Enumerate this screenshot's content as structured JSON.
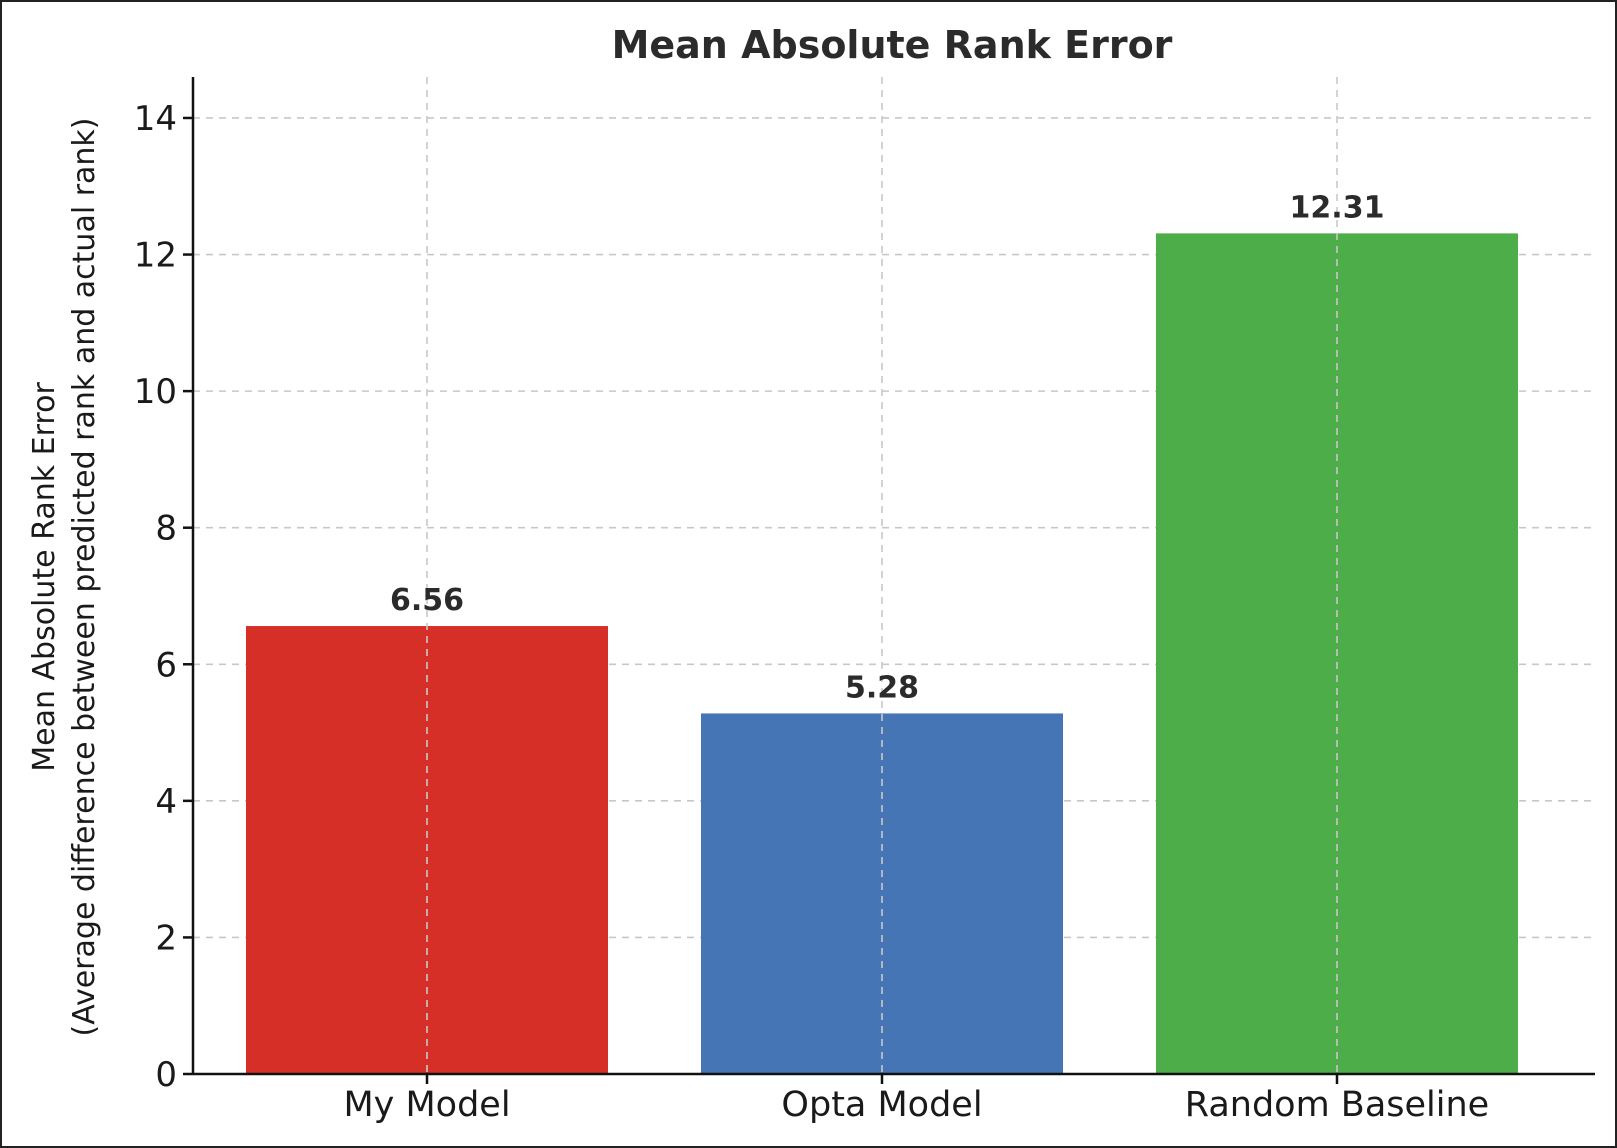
{
  "chart_data": {
    "type": "bar",
    "title": "Mean Absolute Rank Error",
    "ylabel_line1": "Mean Absolute Rank Error",
    "ylabel_line2": "(Average difference between predicted rank and actual rank)",
    "xlabel": "",
    "categories": [
      "My Model",
      "Opta Model",
      "Random Baseline"
    ],
    "values": [
      6.56,
      5.28,
      12.31
    ],
    "value_labels": [
      "6.56",
      "5.28",
      "12.31"
    ],
    "colors": [
      "#d62f27",
      "#4675b6",
      "#4dad48"
    ],
    "ylim": [
      0,
      14.6
    ],
    "yticks": [
      0,
      2,
      4,
      6,
      8,
      10,
      12,
      14
    ],
    "grid": true,
    "legend": "none"
  }
}
